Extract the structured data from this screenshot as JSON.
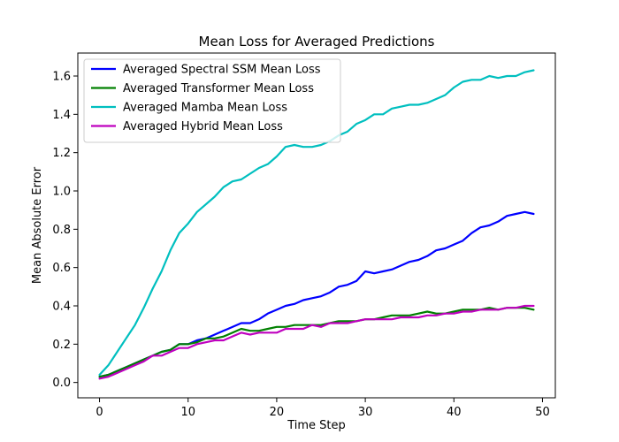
{
  "chart_data": {
    "type": "line",
    "title": "Mean Loss for Averaged Predictions",
    "xlabel": "Time Step",
    "ylabel": "Mean Absolute Error",
    "xlim": [
      -2.45,
      51.45
    ],
    "ylim": [
      -0.08,
      1.72
    ],
    "xticks": [
      0,
      10,
      20,
      30,
      40,
      50
    ],
    "yticks": [
      0.0,
      0.2,
      0.4,
      0.6,
      0.8,
      1.0,
      1.2,
      1.4,
      1.6
    ],
    "grid": false,
    "legend_position": "top-left",
    "x": [
      0,
      1,
      2,
      3,
      4,
      5,
      6,
      7,
      8,
      9,
      10,
      11,
      12,
      13,
      14,
      15,
      16,
      17,
      18,
      19,
      20,
      21,
      22,
      23,
      24,
      25,
      26,
      27,
      28,
      29,
      30,
      31,
      32,
      33,
      34,
      35,
      36,
      37,
      38,
      39,
      40,
      41,
      42,
      43,
      44,
      45,
      46,
      47,
      48,
      49
    ],
    "series": [
      {
        "name": "Averaged Spectral SSM Mean Loss",
        "color": "#0000ff",
        "values": [
          0.03,
          0.04,
          0.06,
          0.08,
          0.1,
          0.12,
          0.14,
          0.16,
          0.17,
          0.2,
          0.2,
          0.22,
          0.23,
          0.25,
          0.27,
          0.29,
          0.31,
          0.31,
          0.33,
          0.36,
          0.38,
          0.4,
          0.41,
          0.43,
          0.44,
          0.45,
          0.47,
          0.5,
          0.51,
          0.53,
          0.58,
          0.57,
          0.58,
          0.59,
          0.61,
          0.63,
          0.64,
          0.66,
          0.69,
          0.7,
          0.72,
          0.74,
          0.78,
          0.81,
          0.82,
          0.84,
          0.87,
          0.88,
          0.89,
          0.88
        ]
      },
      {
        "name": "Averaged Transformer Mean Loss",
        "color": "#008000",
        "values": [
          0.03,
          0.04,
          0.06,
          0.08,
          0.1,
          0.12,
          0.14,
          0.16,
          0.17,
          0.2,
          0.2,
          0.21,
          0.23,
          0.23,
          0.24,
          0.26,
          0.28,
          0.27,
          0.27,
          0.28,
          0.29,
          0.29,
          0.3,
          0.3,
          0.3,
          0.3,
          0.31,
          0.32,
          0.32,
          0.32,
          0.33,
          0.33,
          0.34,
          0.35,
          0.35,
          0.35,
          0.36,
          0.37,
          0.36,
          0.36,
          0.37,
          0.38,
          0.38,
          0.38,
          0.39,
          0.38,
          0.39,
          0.39,
          0.39,
          0.38
        ]
      },
      {
        "name": "Averaged Mamba Mean Loss",
        "color": "#00bfbf",
        "values": [
          0.04,
          0.09,
          0.16,
          0.23,
          0.3,
          0.39,
          0.49,
          0.58,
          0.69,
          0.78,
          0.83,
          0.89,
          0.93,
          0.97,
          1.02,
          1.05,
          1.06,
          1.09,
          1.12,
          1.14,
          1.18,
          1.23,
          1.24,
          1.23,
          1.23,
          1.24,
          1.26,
          1.29,
          1.31,
          1.35,
          1.37,
          1.4,
          1.4,
          1.43,
          1.44,
          1.45,
          1.45,
          1.46,
          1.48,
          1.5,
          1.54,
          1.57,
          1.58,
          1.58,
          1.6,
          1.59,
          1.6,
          1.6,
          1.62,
          1.63
        ]
      },
      {
        "name": "Averaged Hybrid Mean Loss",
        "color": "#bf00bf",
        "values": [
          0.02,
          0.03,
          0.05,
          0.07,
          0.09,
          0.11,
          0.14,
          0.14,
          0.16,
          0.18,
          0.18,
          0.2,
          0.21,
          0.22,
          0.22,
          0.24,
          0.26,
          0.25,
          0.26,
          0.26,
          0.26,
          0.28,
          0.28,
          0.28,
          0.3,
          0.29,
          0.31,
          0.31,
          0.31,
          0.32,
          0.33,
          0.33,
          0.33,
          0.33,
          0.34,
          0.34,
          0.34,
          0.35,
          0.35,
          0.36,
          0.36,
          0.37,
          0.37,
          0.38,
          0.38,
          0.38,
          0.39,
          0.39,
          0.4,
          0.4
        ]
      }
    ]
  }
}
